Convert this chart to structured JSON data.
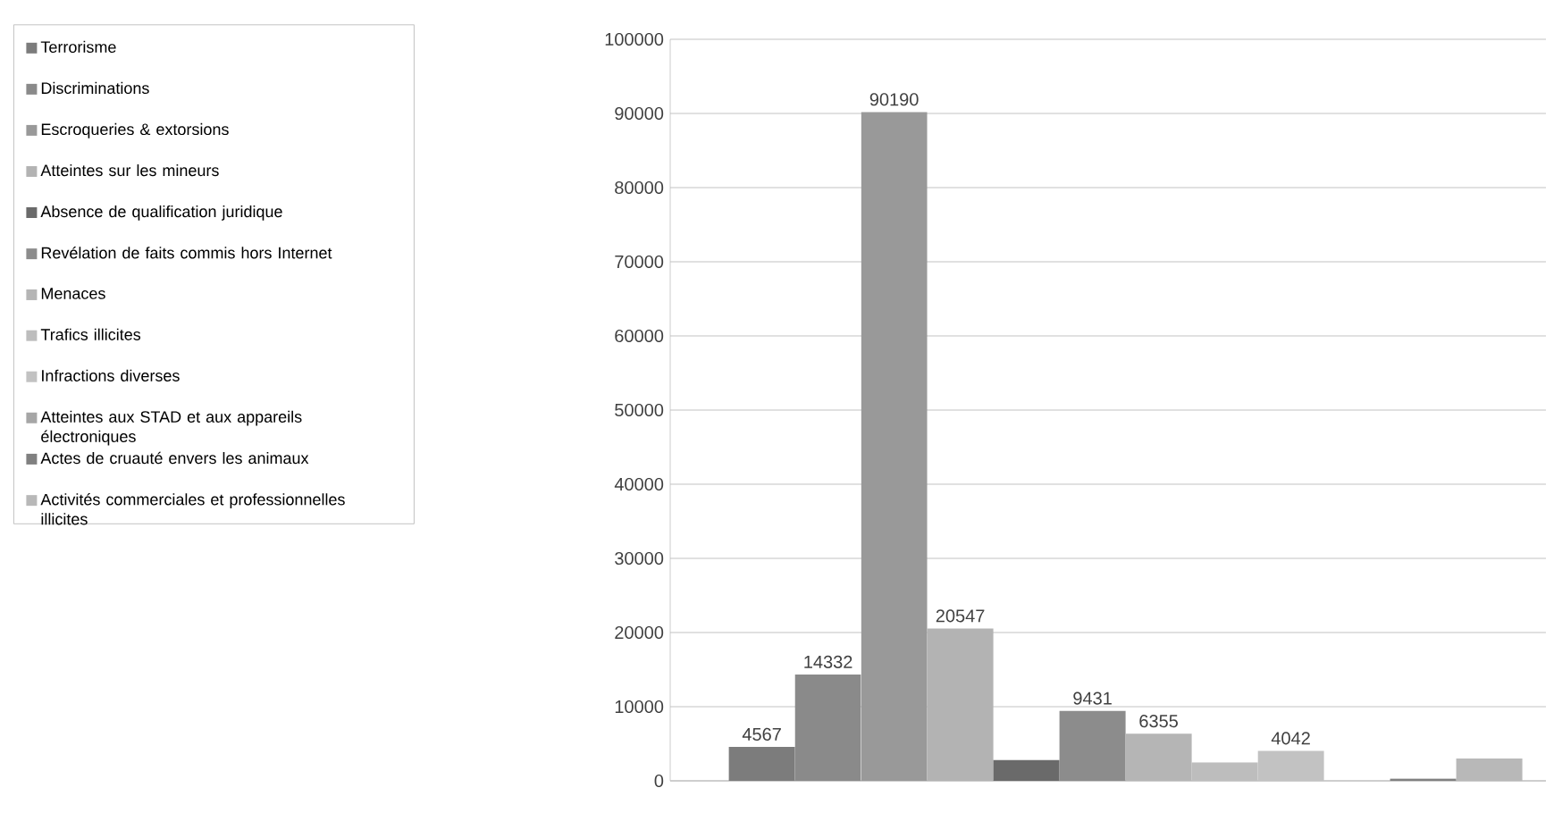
{
  "chart_data": {
    "type": "bar",
    "categories": [
      null
    ],
    "series": [
      {
        "name": "Terrorisme",
        "color": "#7c7c7c",
        "values": [
          4567
        ],
        "value_labels": [
          "4567"
        ]
      },
      {
        "name": "Discriminations",
        "color": "#8a8a8a",
        "values": [
          14332
        ],
        "value_labels": [
          "14332"
        ]
      },
      {
        "name": "Escroqueries & extorsions",
        "color": "#999999",
        "values": [
          90190
        ],
        "value_labels": [
          "90190"
        ]
      },
      {
        "name": "Atteintes sur les mineurs",
        "color": "#b3b3b3",
        "values": [
          20547
        ],
        "value_labels": [
          "20547"
        ]
      },
      {
        "name": "Absence de qualification juridique",
        "color": "#6a6a6a",
        "values": [
          2800
        ],
        "value_labels": [
          null
        ]
      },
      {
        "name": "Revélation de faits commis hors Internet",
        "color": "#8c8c8c",
        "values": [
          9431
        ],
        "value_labels": [
          "9431"
        ]
      },
      {
        "name": "Menaces",
        "color": "#b5b5b5",
        "values": [
          6355
        ],
        "value_labels": [
          "6355"
        ]
      },
      {
        "name": "Trafics illicites",
        "color": "#bdbdbd",
        "values": [
          2500
        ],
        "value_labels": [
          null
        ]
      },
      {
        "name": "Infractions diverses",
        "color": "#c2c2c2",
        "values": [
          4042
        ],
        "value_labels": [
          "4042"
        ]
      },
      {
        "name": "Atteintes aux STAD et aux appareils électroniques",
        "color": "#a6a6a6",
        "values": [
          null
        ],
        "value_labels": [
          null
        ]
      },
      {
        "name": "Actes de cruauté envers les animaux",
        "color": "#808080",
        "values": [
          300
        ],
        "value_labels": [
          null
        ]
      },
      {
        "name": "Activités commerciales et professionnelles illicites",
        "color": "#b8b8b8",
        "values": [
          3000
        ],
        "value_labels": [
          null
        ]
      }
    ],
    "ylim": [
      0,
      100000
    ],
    "yticks": [
      0,
      10000,
      20000,
      30000,
      40000,
      50000,
      60000,
      70000,
      80000,
      90000,
      100000
    ],
    "grid": "y",
    "legend": "left"
  }
}
